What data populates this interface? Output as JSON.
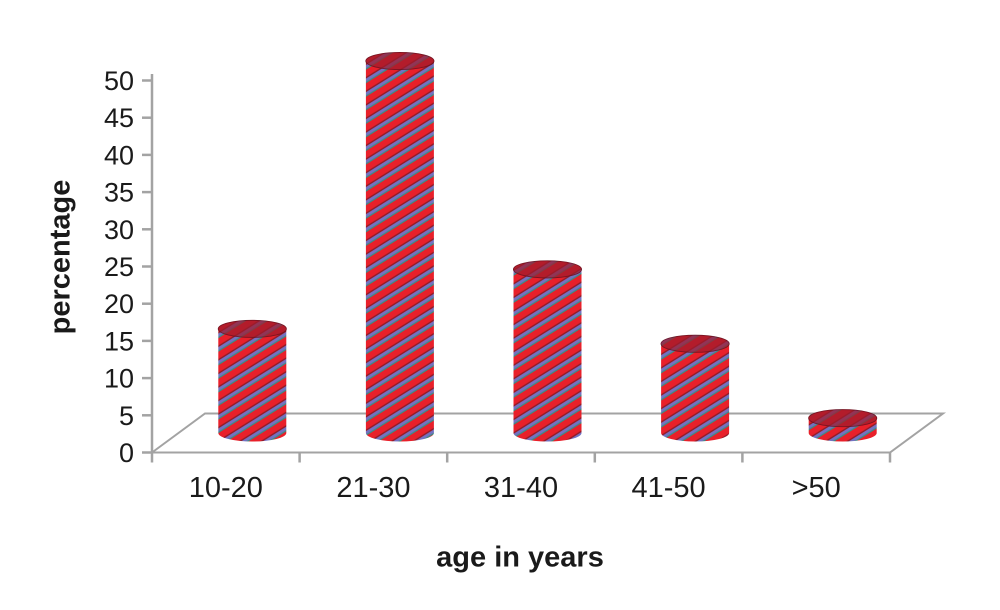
{
  "chart_data": {
    "type": "bar",
    "subtype": "3d-cylinder",
    "title": "",
    "xlabel": "age in years",
    "ylabel": "percentage",
    "categories": [
      "10-20",
      "21-30",
      "31-40",
      "41-50",
      ">50"
    ],
    "values": [
      14,
      50,
      22,
      12,
      2
    ],
    "ylim": [
      0,
      50
    ],
    "y_tick_step": 5,
    "y_ticks": [
      0,
      5,
      10,
      15,
      20,
      25,
      30,
      35,
      40,
      45,
      50
    ],
    "grid": false,
    "legend": "none",
    "colors": {
      "stripe_red": "#e8202a",
      "stripe_blue": "#7173c4",
      "stripe_teal": "#2f9488",
      "stripe_dark": "#8f1b28",
      "cylinder_top": "#9e1b2c",
      "cylinder_top_rim": "#6e1220",
      "axis_line": "#a3a3a3",
      "text": "#1a1a1a",
      "background": "#ffffff"
    }
  }
}
